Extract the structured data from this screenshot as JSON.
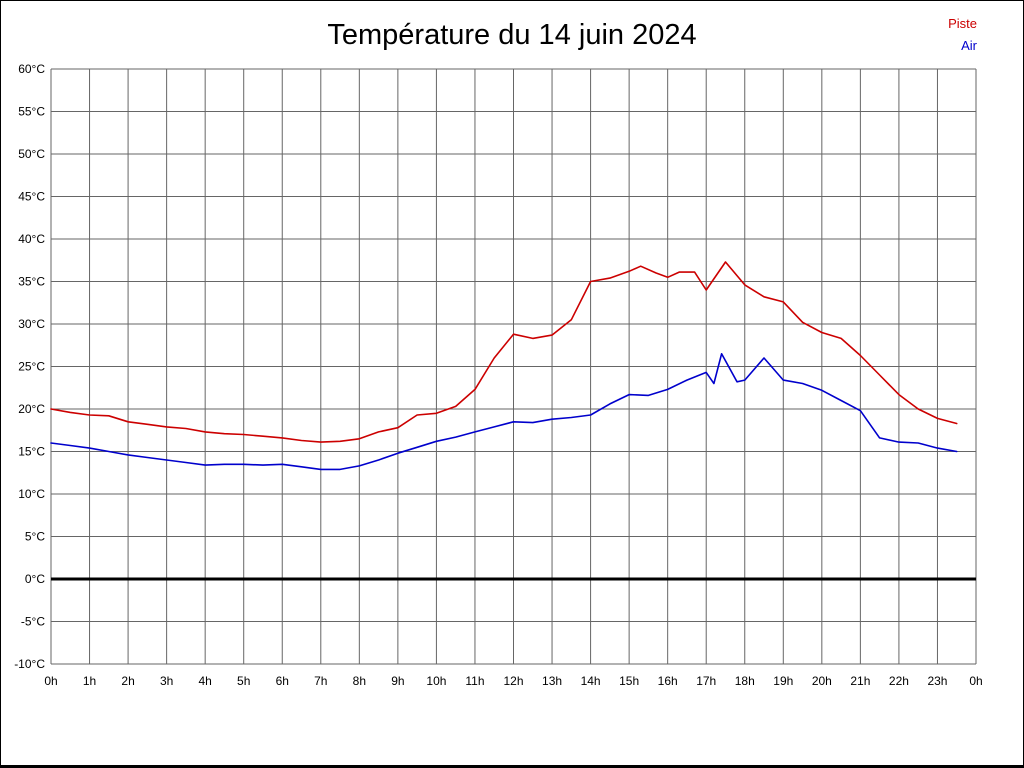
{
  "chart_data": {
    "type": "line",
    "title": "Température du 14 juin 2024",
    "xlabel": "",
    "ylabel": "",
    "y_unit": "°C",
    "x_range": [
      0,
      24
    ],
    "y_range": [
      -10,
      60
    ],
    "y_tick_step": 5,
    "grid": true,
    "zero_line": true,
    "grid_color": "#666666",
    "zero_line_color": "#000000",
    "x_tick_labels": [
      "0h",
      "1h",
      "2h",
      "3h",
      "4h",
      "5h",
      "6h",
      "7h",
      "8h",
      "9h",
      "10h",
      "11h",
      "12h",
      "13h",
      "14h",
      "15h",
      "16h",
      "17h",
      "18h",
      "19h",
      "20h",
      "21h",
      "22h",
      "23h",
      "0h"
    ],
    "legend": [
      {
        "label": "Piste",
        "color": "#cc0000"
      },
      {
        "label": "Air",
        "color": "#0000cc"
      }
    ],
    "series": [
      {
        "name": "Piste",
        "color": "#cc0000",
        "x": [
          0,
          0.5,
          1,
          1.5,
          2,
          2.5,
          3,
          3.5,
          4,
          4.5,
          5,
          5.5,
          6,
          6.5,
          7,
          7.5,
          8,
          8.5,
          9,
          9.5,
          10,
          10.5,
          11,
          11.5,
          12,
          12.5,
          13,
          13.5,
          14,
          14.5,
          15,
          15.3,
          15.7,
          16,
          16.3,
          16.7,
          17,
          17.5,
          18,
          18.5,
          19,
          19.5,
          20,
          20.5,
          21,
          21.5,
          22,
          22.5,
          23,
          23.5
        ],
        "y": [
          20.0,
          19.6,
          19.3,
          19.2,
          18.5,
          18.2,
          17.9,
          17.7,
          17.3,
          17.1,
          17.0,
          16.8,
          16.6,
          16.3,
          16.1,
          16.2,
          16.5,
          17.3,
          17.8,
          19.3,
          19.5,
          20.3,
          22.3,
          26.0,
          28.8,
          28.3,
          28.7,
          30.5,
          35.0,
          35.4,
          36.2,
          36.8,
          36.0,
          35.5,
          36.1,
          36.1,
          34.0,
          37.3,
          34.6,
          33.2,
          32.6,
          30.2,
          29.0,
          28.3,
          26.3,
          24.0,
          21.7,
          20.0,
          18.9,
          18.3
        ]
      },
      {
        "name": "Air",
        "color": "#0000cc",
        "x": [
          0,
          0.5,
          1,
          1.5,
          2,
          2.5,
          3,
          3.5,
          4,
          4.5,
          5,
          5.5,
          6,
          6.5,
          7,
          7.5,
          8,
          8.5,
          9,
          9.5,
          10,
          10.5,
          11,
          11.5,
          12,
          12.5,
          13,
          13.5,
          14,
          14.5,
          15,
          15.5,
          16,
          16.5,
          17,
          17.2,
          17.4,
          17.8,
          18,
          18.5,
          19,
          19.5,
          20,
          20.5,
          21,
          21.5,
          22,
          22.5,
          23,
          23.5
        ],
        "y": [
          16.0,
          15.7,
          15.4,
          15.0,
          14.6,
          14.3,
          14.0,
          13.7,
          13.4,
          13.5,
          13.5,
          13.4,
          13.5,
          13.2,
          12.9,
          12.9,
          13.3,
          14.0,
          14.8,
          15.5,
          16.2,
          16.7,
          17.3,
          17.9,
          18.5,
          18.4,
          18.8,
          19.0,
          19.3,
          20.6,
          21.7,
          21.6,
          22.3,
          23.4,
          24.3,
          23.0,
          26.5,
          23.2,
          23.4,
          26.0,
          23.4,
          23.0,
          22.2,
          21.0,
          19.8,
          16.6,
          16.1,
          16.0,
          15.4,
          15.0
        ]
      }
    ]
  }
}
